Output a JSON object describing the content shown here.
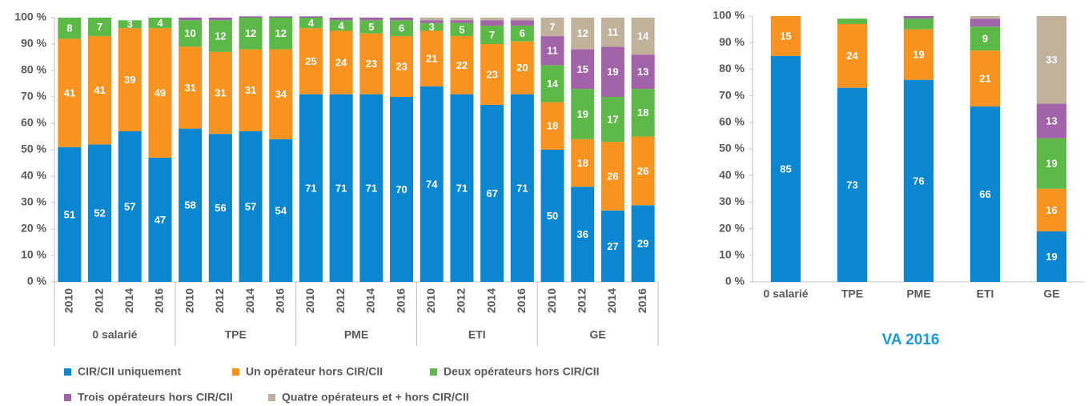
{
  "chart_data": [
    {
      "type": "bar",
      "stacked": true,
      "categories": [
        "2010",
        "2012",
        "2014",
        "2016",
        "2010",
        "2012",
        "2014",
        "2016",
        "2010",
        "2012",
        "2014",
        "2016",
        "2010",
        "2012",
        "2014",
        "2016",
        "2010",
        "2012",
        "2014",
        "2016"
      ],
      "group_labels": [
        "0 salarié",
        "TPE",
        "PME",
        "ETI",
        "GE"
      ],
      "ylim": [
        0,
        100
      ],
      "yticks": [
        {
          "value": 0,
          "label": "0 %"
        },
        {
          "value": 10,
          "label": "10 %"
        },
        {
          "value": 20,
          "label": "20 %"
        },
        {
          "value": 30,
          "label": "30 %"
        },
        {
          "value": 40,
          "label": "40 %"
        },
        {
          "value": 50,
          "label": "50 %"
        },
        {
          "value": 60,
          "label": "60 %"
        },
        {
          "value": 70,
          "label": "70 %"
        },
        {
          "value": 80,
          "label": "80 %"
        },
        {
          "value": 90,
          "label": "90 %"
        },
        {
          "value": 100,
          "label": "100 %"
        }
      ],
      "legend": "bottom",
      "series": [
        {
          "name": "CIR/CII uniquement",
          "color": "#0b87d1",
          "values": [
            51,
            52,
            57,
            47,
            58,
            56,
            57,
            54,
            71,
            71,
            71,
            70,
            74,
            71,
            67,
            71,
            50,
            36,
            27,
            29
          ],
          "value_labels": [
            "51",
            "52",
            "57",
            "47",
            "58",
            "56",
            "57",
            "54",
            "71",
            "71",
            "71",
            "70",
            "74",
            "71",
            "67",
            "71",
            "50",
            "36",
            "27",
            "29"
          ]
        },
        {
          "name": "Un opérateur hors CIR/CII",
          "color": "#f7931e",
          "values": [
            41,
            41,
            39,
            49,
            31,
            31,
            31,
            34,
            25,
            24,
            23,
            23,
            21,
            22,
            23,
            20,
            18,
            18,
            26,
            26
          ],
          "value_labels": [
            "41",
            "41",
            "39",
            "49",
            "31",
            "31",
            "31",
            "34",
            "25",
            "24",
            "23",
            "23",
            "21",
            "22",
            "23",
            "20",
            "18",
            "18",
            "26",
            "26"
          ]
        },
        {
          "name": "Deux opérateurs hors CIR/CII",
          "color": "#5cb947",
          "values": [
            8,
            7,
            3,
            4,
            10,
            12,
            12,
            12,
            4,
            4,
            5,
            6,
            3,
            5,
            7,
            6,
            14,
            19,
            17,
            18
          ],
          "value_labels": [
            "8",
            "7",
            "3",
            "4",
            "10",
            "12",
            "12",
            "12",
            "4",
            "4",
            "5",
            "6",
            "3",
            "5",
            "7",
            "6",
            "14",
            "19",
            "17",
            "18"
          ]
        },
        {
          "name": "Trois opérateurs hors CIR/CII",
          "color": "#a263a9",
          "values": [
            0,
            0,
            0,
            0,
            1,
            1,
            0.5,
            0.5,
            0.5,
            1,
            1,
            1,
            1,
            1,
            2,
            2,
            11,
            15,
            19,
            13
          ],
          "value_labels": [
            null,
            null,
            null,
            null,
            null,
            null,
            null,
            null,
            null,
            null,
            null,
            null,
            null,
            null,
            null,
            null,
            "11",
            "15",
            "19",
            "13"
          ]
        },
        {
          "name": "Quatre opérateurs et + hors CIR/CII",
          "color": "#bfb19a",
          "values": [
            0,
            0,
            0,
            0,
            0,
            0,
            0,
            0,
            0,
            0,
            0,
            0,
            1,
            1,
            1,
            1,
            7,
            12,
            11,
            14
          ],
          "value_labels": [
            null,
            null,
            null,
            null,
            null,
            null,
            null,
            null,
            null,
            null,
            null,
            null,
            null,
            null,
            null,
            null,
            "7",
            "12",
            "11",
            "14"
          ]
        }
      ]
    },
    {
      "type": "bar",
      "stacked": true,
      "title": "VA 2016",
      "categories": [
        "0 salarié",
        "TPE",
        "PME",
        "ETI",
        "GE"
      ],
      "ylim": [
        0,
        100
      ],
      "yticks": [
        {
          "value": 0,
          "label": "0 %"
        },
        {
          "value": 10,
          "label": "10 %"
        },
        {
          "value": 20,
          "label": "20 %"
        },
        {
          "value": 30,
          "label": "30 %"
        },
        {
          "value": 40,
          "label": "40 %"
        },
        {
          "value": 50,
          "label": "50 %"
        },
        {
          "value": 60,
          "label": "60 %"
        },
        {
          "value": 70,
          "label": "70 %"
        },
        {
          "value": 80,
          "label": "80 %"
        },
        {
          "value": 90,
          "label": "90 %"
        },
        {
          "value": 100,
          "label": "100 %"
        }
      ],
      "series": [
        {
          "color": "#0b87d1",
          "values": [
            85,
            73,
            76,
            66,
            19
          ],
          "value_labels": [
            "85",
            "73",
            "76",
            "66",
            "19"
          ]
        },
        {
          "color": "#f7931e",
          "values": [
            15,
            24,
            19,
            21,
            16
          ],
          "value_labels": [
            "15",
            "24",
            "19",
            "21",
            "16"
          ]
        },
        {
          "color": "#5cb947",
          "values": [
            0,
            2,
            4,
            9,
            19
          ],
          "value_labels": [
            null,
            null,
            null,
            "9",
            "19"
          ]
        },
        {
          "color": "#a263a9",
          "values": [
            0,
            0,
            1,
            3,
            13
          ],
          "value_labels": [
            null,
            null,
            null,
            null,
            "13"
          ]
        },
        {
          "color": "#bfb19a",
          "values": [
            0,
            0,
            0,
            1,
            33
          ],
          "value_labels": [
            null,
            null,
            null,
            null,
            "33"
          ]
        }
      ]
    }
  ]
}
